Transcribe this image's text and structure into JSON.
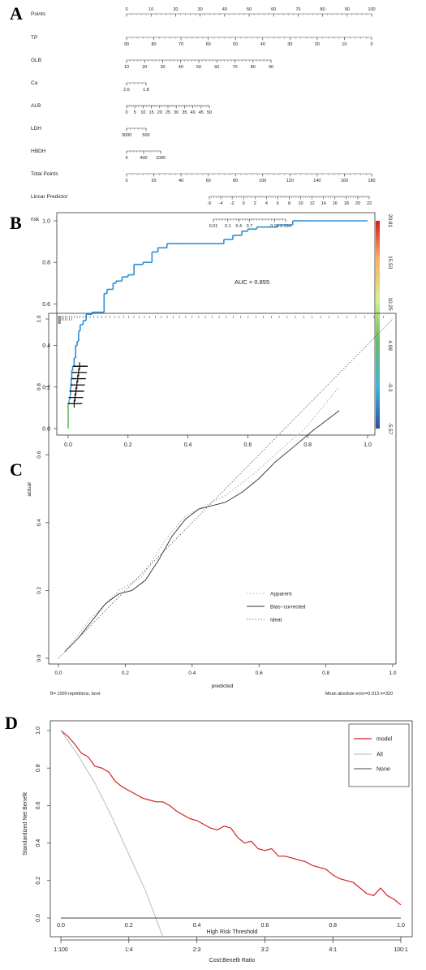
{
  "panels": {
    "a": "A",
    "b": "B",
    "c": "C",
    "d": "D"
  },
  "chart_data": [
    {
      "type": "nomogram",
      "rows": [
        {
          "label": "Points",
          "ticks": [
            "0",
            "10",
            "20",
            "30",
            "40",
            "50",
            "60",
            "70",
            "80",
            "90",
            "100"
          ],
          "range": [
            0,
            100
          ]
        },
        {
          "label": "TP",
          "ticks": [
            "90",
            "80",
            "70",
            "60",
            "50",
            "40",
            "30",
            "20",
            "10",
            "0"
          ],
          "range": [
            90,
            0
          ]
        },
        {
          "label": "GLB",
          "ticks": [
            "10",
            "20",
            "30",
            "40",
            "50",
            "60",
            "70",
            "80",
            "90"
          ],
          "range": [
            10,
            90
          ]
        },
        {
          "label": "Ca",
          "ticks": [
            "2.6",
            "1.8"
          ],
          "range": [
            2.6,
            1.6
          ]
        },
        {
          "label": "ALB",
          "ticks": [
            "0",
            "5",
            "10",
            "15",
            "20",
            "25",
            "30",
            "35",
            "40",
            "45",
            "50"
          ],
          "range": [
            0,
            50
          ]
        },
        {
          "label": "LDH",
          "ticks": [
            "3000",
            "500"
          ],
          "range": [
            3000,
            0
          ]
        },
        {
          "label": "HBDH",
          "ticks": [
            "0",
            "400",
            "1000"
          ],
          "range": [
            0,
            1600
          ]
        },
        {
          "label": "Total Points",
          "ticks": [
            "0",
            "20",
            "40",
            "60",
            "80",
            "100",
            "120",
            "140",
            "160",
            "180"
          ],
          "range": [
            0,
            180
          ]
        },
        {
          "label": "Lincar Predictor",
          "ticks": [
            "-6",
            "-4",
            "-2",
            "0",
            "2",
            "4",
            "6",
            "8",
            "10",
            "12",
            "14",
            "16",
            "18",
            "20",
            "22"
          ],
          "range": [
            -6,
            22
          ]
        },
        {
          "label": "risk",
          "ticks": [
            "0.01",
            "0.1",
            "0.4",
            "0.7",
            "0.99",
            "0.999"
          ],
          "range": [
            0.01,
            0.999
          ]
        }
      ]
    },
    {
      "type": "line",
      "annotation": "AUC = 0.855",
      "xlim": [
        0,
        1
      ],
      "ylim": [
        0,
        1
      ],
      "xticks": [
        "0.0",
        "0.2",
        "0.4",
        "0.6",
        "0.8",
        "1.0"
      ],
      "yticks": [
        "0.0",
        "0.2",
        "0.4",
        "0.6",
        "0.8",
        "1.0"
      ],
      "colorbar": {
        "ticks": [
          "20.81",
          "15.53",
          "10.25",
          "4.98",
          "-0.3",
          "-5.57"
        ],
        "range": [
          -5.57,
          20.81
        ]
      },
      "series": [
        {
          "x": [
            0,
            0,
            0.003,
            0.006,
            0.008,
            0.01,
            0.012,
            0.015,
            0.02,
            0.025,
            0.03,
            0.035,
            0.04,
            0.05,
            0.06,
            0.08,
            0.1,
            0.12,
            0.13,
            0.15,
            0.16,
            0.18,
            0.2,
            0.22,
            0.25,
            0.28,
            0.3,
            0.33,
            0.36,
            0.4,
            0.44,
            0.48,
            0.52,
            0.55,
            0.58,
            0.6,
            0.63,
            0.66,
            0.7,
            0.72,
            0.75,
            0.78,
            0.8,
            0.85,
            0.9,
            1.0
          ],
          "y": [
            0,
            0.12,
            0.14,
            0.16,
            0.2,
            0.24,
            0.28,
            0.3,
            0.34,
            0.4,
            0.42,
            0.47,
            0.5,
            0.52,
            0.55,
            0.56,
            0.56,
            0.65,
            0.67,
            0.7,
            0.71,
            0.73,
            0.74,
            0.79,
            0.8,
            0.85,
            0.87,
            0.89,
            0.89,
            0.89,
            0.89,
            0.89,
            0.91,
            0.93,
            0.95,
            0.96,
            0.97,
            0.97,
            0.98,
            0.98,
            1.0,
            1.0,
            1.0,
            1.0,
            1.0,
            1.0
          ]
        }
      ]
    },
    {
      "type": "line",
      "xlabel": "predicted",
      "ylabel": "actual",
      "xlim": [
        0,
        1
      ],
      "ylim": [
        0,
        1
      ],
      "xticks": [
        "0.0",
        "0.2",
        "0.4",
        "0.6",
        "0.8",
        "1.0"
      ],
      "yticks": [
        "0.0",
        "0.2",
        "0.4",
        "0.6",
        "0.8",
        "1.0"
      ],
      "legend": [
        "Apparent",
        "Bias−corrected",
        "Ideal"
      ],
      "footnote_left": "B= 1000 repetitions, boot",
      "footnote_right": "Mean absolute error=0.013 n=320",
      "series": [
        {
          "name": "Apparent",
          "x": [
            0.02,
            0.1,
            0.18,
            0.25,
            0.32,
            0.38,
            0.44,
            0.5,
            0.58,
            0.66,
            0.74,
            0.84
          ],
          "y": [
            0.02,
            0.12,
            0.2,
            0.24,
            0.35,
            0.42,
            0.45,
            0.48,
            0.54,
            0.61,
            0.68,
            0.8
          ]
        },
        {
          "name": "Bias−corrected",
          "x": [
            0.02,
            0.06,
            0.1,
            0.14,
            0.18,
            0.22,
            0.26,
            0.3,
            0.34,
            0.38,
            0.42,
            0.46,
            0.5,
            0.55,
            0.6,
            0.65,
            0.7,
            0.76,
            0.84
          ],
          "y": [
            0.02,
            0.06,
            0.11,
            0.16,
            0.19,
            0.2,
            0.23,
            0.29,
            0.36,
            0.41,
            0.44,
            0.45,
            0.46,
            0.49,
            0.53,
            0.58,
            0.62,
            0.67,
            0.73
          ]
        },
        {
          "name": "Ideal",
          "x": [
            0,
            1
          ],
          "y": [
            0,
            1
          ]
        }
      ]
    },
    {
      "type": "line",
      "xlabel": "High Risk Threshold",
      "ylabel": "Standardized Net Benefit",
      "x2label": "Cost:Benefit Ratio",
      "xlim": [
        0,
        1
      ],
      "ylim": [
        0,
        1
      ],
      "xticks": [
        "0.0",
        "0.2",
        "0.4",
        "0.6",
        "0.8",
        "1.0"
      ],
      "yticks": [
        "0.0",
        "0.2",
        "0.4",
        "0.6",
        "0.8",
        "1.0"
      ],
      "x2ticks": [
        "1:100",
        "1:4",
        "2:3",
        "3:2",
        "4:1",
        "100:1"
      ],
      "legend": [
        "model",
        "All",
        "None"
      ],
      "series": [
        {
          "name": "model",
          "x": [
            0,
            0.02,
            0.04,
            0.06,
            0.08,
            0.1,
            0.12,
            0.14,
            0.16,
            0.18,
            0.2,
            0.22,
            0.24,
            0.26,
            0.28,
            0.3,
            0.32,
            0.34,
            0.36,
            0.38,
            0.4,
            0.42,
            0.44,
            0.46,
            0.48,
            0.5,
            0.52,
            0.54,
            0.56,
            0.58,
            0.6,
            0.62,
            0.64,
            0.66,
            0.68,
            0.7,
            0.72,
            0.74,
            0.76,
            0.78,
            0.8,
            0.82,
            0.84,
            0.86,
            0.88,
            0.9,
            0.92,
            0.94,
            0.96,
            0.98,
            1.0
          ],
          "y": [
            1.0,
            0.97,
            0.93,
            0.88,
            0.86,
            0.81,
            0.8,
            0.78,
            0.73,
            0.7,
            0.68,
            0.66,
            0.64,
            0.63,
            0.62,
            0.62,
            0.6,
            0.57,
            0.55,
            0.53,
            0.52,
            0.5,
            0.48,
            0.47,
            0.49,
            0.48,
            0.43,
            0.4,
            0.41,
            0.37,
            0.36,
            0.37,
            0.33,
            0.33,
            0.32,
            0.31,
            0.3,
            0.28,
            0.27,
            0.26,
            0.23,
            0.21,
            0.2,
            0.19,
            0.16,
            0.13,
            0.12,
            0.16,
            0.12,
            0.1,
            0.07
          ]
        },
        {
          "name": "All",
          "x": [
            0,
            0.05,
            0.1,
            0.15,
            0.2,
            0.25,
            0.3,
            0.32
          ],
          "y": [
            1.0,
            0.87,
            0.72,
            0.54,
            0.34,
            0.14,
            -0.1,
            -0.2
          ]
        },
        {
          "name": "None",
          "x": [
            0,
            1
          ],
          "y": [
            0,
            0
          ]
        }
      ]
    }
  ]
}
